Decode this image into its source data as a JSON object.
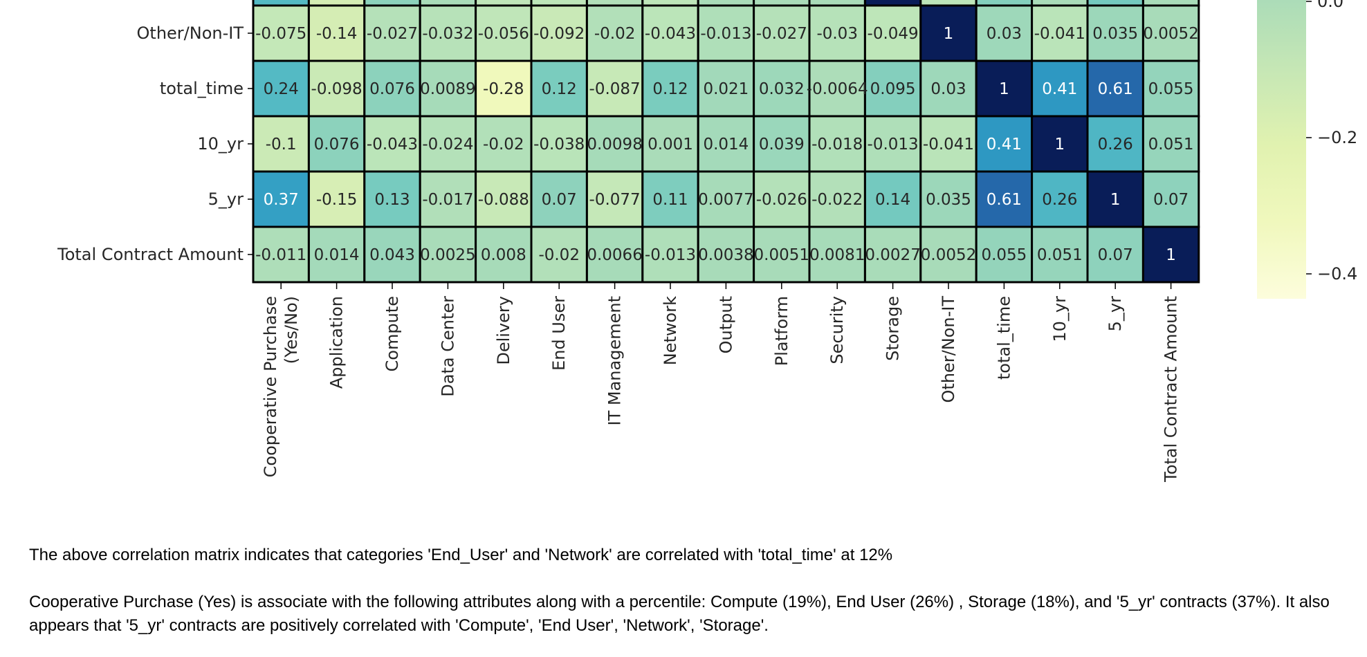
{
  "chart_data": {
    "type": "heatmap",
    "title": "",
    "xlabel": "",
    "ylabel": "",
    "x_labels": [
      "Cooperative Purchase\n(Yes/No)",
      "Application",
      "Compute",
      "Data Center",
      "Delivery",
      "End User",
      "IT Management",
      "Network",
      "Output",
      "Platform",
      "Security",
      "Storage",
      "Other/Non-IT",
      "total_time",
      "10_yr",
      "5_yr",
      "Total Contract Amount"
    ],
    "y_labels": [
      "Other/Non-IT",
      "total_time",
      "10_yr",
      "5_yr",
      "Total Contract Amount"
    ],
    "values": [
      [
        -0.075,
        -0.14,
        -0.027,
        -0.032,
        -0.056,
        -0.092,
        -0.02,
        -0.043,
        -0.013,
        -0.027,
        -0.03,
        -0.049,
        1,
        0.03,
        -0.041,
        0.035,
        0.0052
      ],
      [
        0.24,
        -0.098,
        0.076,
        0.0089,
        -0.28,
        0.12,
        -0.087,
        0.12,
        0.021,
        0.032,
        -0.0064,
        0.095,
        0.03,
        1,
        0.41,
        0.61,
        0.055
      ],
      [
        -0.1,
        0.076,
        -0.043,
        -0.024,
        -0.02,
        -0.038,
        0.0098,
        0.001,
        0.014,
        0.039,
        -0.018,
        -0.013,
        -0.041,
        0.41,
        1,
        0.26,
        0.051
      ],
      [
        0.37,
        -0.15,
        0.13,
        -0.017,
        -0.088,
        0.07,
        -0.077,
        0.11,
        0.0077,
        -0.026,
        -0.022,
        0.14,
        0.035,
        0.61,
        0.26,
        1,
        0.07
      ],
      [
        -0.011,
        0.014,
        0.043,
        0.0025,
        0.008,
        -0.02,
        0.0066,
        -0.013,
        0.0038,
        0.0051,
        0.0081,
        0.0027,
        0.0052,
        0.055,
        0.051,
        0.07,
        1
      ]
    ],
    "cell_labels": [
      [
        "-0.075",
        "-0.14",
        "-0.027",
        "-0.032",
        "-0.056",
        "-0.092",
        "-0.02",
        "-0.043",
        "-0.013",
        "-0.027",
        "-0.03",
        "-0.049",
        "1",
        "0.03",
        "-0.041",
        "0.035",
        "0.0052"
      ],
      [
        "0.24",
        "-0.098",
        "0.076",
        "0.0089",
        "-0.28",
        "0.12",
        "-0.087",
        "0.12",
        "0.021",
        "0.032",
        "-0.0064",
        "0.095",
        "0.03",
        "1",
        "0.41",
        "0.61",
        "0.055"
      ],
      [
        "-0.1",
        "0.076",
        "-0.043",
        "-0.024",
        "-0.02",
        "-0.038",
        "0.0098",
        "0.001",
        "0.014",
        "0.039",
        "-0.018",
        "-0.013",
        "-0.041",
        "0.41",
        "1",
        "0.26",
        "0.051"
      ],
      [
        "0.37",
        "-0.15",
        "0.13",
        "-0.017",
        "-0.088",
        "0.07",
        "-0.077",
        "0.11",
        "0.0077",
        "-0.026",
        "-0.022",
        "0.14",
        "0.035",
        "0.61",
        "0.26",
        "1",
        "0.07"
      ],
      [
        "-0.011",
        "0.014",
        "0.043",
        "0.0025",
        "0.008",
        "-0.02",
        "0.0066",
        "-0.013",
        "0.0038",
        "0.0051",
        "0.0081",
        "0.0027",
        "0.0052",
        "0.055",
        "0.051",
        "0.07",
        "1"
      ]
    ],
    "partial_top_row_values": [
      0.24,
      -0.14,
      0.076,
      0.0,
      -0.056,
      -0.05,
      -0.02,
      -0.05,
      0.0,
      0.0,
      0.0,
      1,
      -0.049,
      0.095,
      0.0,
      0.14,
      0.0027
    ],
    "colormap": "YlGnBu",
    "colorbar": {
      "ticks": [
        0.0,
        -0.2,
        -0.4
      ],
      "tick_labels": [
        "0.0",
        "−0.2",
        "−0.4"
      ],
      "range_visible": [
        -0.44,
        0.0
      ]
    },
    "grid": false,
    "cell_border_color": "#000000"
  },
  "text": {
    "paragraph1": "The above correlation matrix indicates that categories 'End_User' and 'Network' are correlated with 'total_time' at 12%",
    "paragraph2": "Cooperative Purchase (Yes) is associate with the following attributes along with a percentile: Compute (19%), End User (26%) , Storage (18%), and '5_yr' contracts (37%). It also appears that '5_yr' contracts are positively correlated with 'Compute', 'End User', 'Network', 'Storage'."
  }
}
